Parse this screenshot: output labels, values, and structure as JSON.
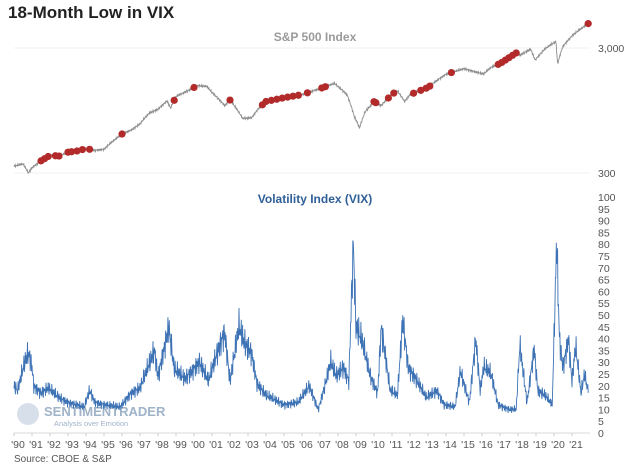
{
  "title": "18-Month Low in VIX",
  "source": "Source: CBOE & S&P",
  "watermark": {
    "name": "SENTIMENTRADER",
    "tagline": "Analysis over Emotion"
  },
  "colors": {
    "sp_line": "#8c8c8c",
    "signal_dot": "#b22a2a",
    "vix_line": "#3d72b4",
    "vix_title": "#2f5f97"
  },
  "chart_data": [
    {
      "type": "line",
      "title": "S&P 500 Index",
      "yscale": "log",
      "ylim": [
        250,
        5000
      ],
      "yticks": [
        {
          "v": 300,
          "label": "300"
        },
        {
          "v": 3000,
          "label": "3,000"
        }
      ],
      "x": [
        1990.0,
        1990.5,
        1990.8,
        1991.0,
        1991.5,
        1992.0,
        1992.5,
        1993.0,
        1993.5,
        1994.0,
        1994.5,
        1995.0,
        1995.5,
        1996.0,
        1996.5,
        1997.0,
        1997.5,
        1998.0,
        1998.5,
        1998.7,
        1999.0,
        1999.5,
        2000.2,
        2000.7,
        2001.0,
        2001.7,
        2002.0,
        2002.7,
        2003.2,
        2003.6,
        2004.0,
        2005.0,
        2006.0,
        2007.0,
        2007.8,
        2008.5,
        2008.9,
        2009.2,
        2009.5,
        2010.0,
        2010.4,
        2011.0,
        2011.3,
        2011.7,
        2012.0,
        2013.0,
        2014.0,
        2015.0,
        2015.7,
        2016.1,
        2016.5,
        2017.0,
        2018.0,
        2018.1,
        2018.7,
        2018.95,
        2019.5,
        2020.1,
        2020.2,
        2020.5,
        2021.0,
        2021.9
      ],
      "values": [
        340,
        355,
        300,
        330,
        375,
        415,
        410,
        440,
        450,
        470,
        455,
        465,
        540,
        615,
        660,
        740,
        900,
        970,
        1130,
        990,
        1230,
        1330,
        1500,
        1480,
        1320,
        1040,
        1150,
        820,
        830,
        990,
        1120,
        1200,
        1270,
        1420,
        1560,
        1270,
        850,
        690,
        920,
        1115,
        1040,
        1280,
        1360,
        1120,
        1270,
        1450,
        1850,
        2050,
        1920,
        1860,
        2100,
        2250,
        2800,
        2620,
        2930,
        2400,
        2950,
        3380,
        2240,
        3100,
        3750,
        4700
      ],
      "signals_x": [
        1991.5,
        1991.7,
        1991.9,
        1992.3,
        1992.5,
        1993.0,
        1993.2,
        1993.5,
        1993.8,
        1994.2,
        1996.0,
        1998.9,
        2000.0,
        2002.0,
        2003.8,
        2004.0,
        2004.3,
        2004.6,
        2004.9,
        2005.2,
        2005.5,
        2005.8,
        2006.3,
        2007.1,
        2007.3,
        2010.0,
        2010.1,
        2010.8,
        2011.1,
        2012.2,
        2012.6,
        2012.9,
        2013.1,
        2014.3,
        2016.9,
        2017.1,
        2017.3,
        2017.5,
        2017.7,
        2017.9,
        2021.9
      ]
    },
    {
      "type": "line",
      "title": "Volatility Index (VIX)",
      "ylim": [
        0,
        100
      ],
      "yticks": [
        0,
        5,
        10,
        15,
        20,
        25,
        30,
        35,
        40,
        45,
        50,
        55,
        60,
        65,
        70,
        75,
        80,
        85,
        90,
        95,
        100
      ],
      "x": [
        1990.0,
        1990.2,
        1990.6,
        1990.8,
        1991.0,
        1991.1,
        1991.5,
        1991.9,
        1992.5,
        1993.0,
        1993.9,
        1994.2,
        1994.5,
        1995.0,
        1995.9,
        1996.5,
        1997.0,
        1997.8,
        1998.0,
        1998.6,
        1998.9,
        1999.5,
        2000.3,
        2000.8,
        2001.2,
        2001.7,
        2002.0,
        2002.5,
        2002.8,
        2003.2,
        2003.5,
        2004.0,
        2004.5,
        2005.0,
        2005.8,
        2006.4,
        2006.9,
        2007.2,
        2007.6,
        2007.9,
        2008.3,
        2008.6,
        2008.85,
        2009.0,
        2009.3,
        2009.8,
        2010.2,
        2010.4,
        2010.9,
        2011.3,
        2011.6,
        2011.9,
        2012.4,
        2012.9,
        2013.5,
        2013.9,
        2014.5,
        2014.8,
        2015.3,
        2015.65,
        2015.9,
        2016.1,
        2016.5,
        2016.9,
        2017.5,
        2017.9,
        2018.1,
        2018.5,
        2018.9,
        2019.1,
        2019.5,
        2019.9,
        2020.15,
        2020.3,
        2020.5,
        2020.8,
        2021.0,
        2021.2,
        2021.5,
        2021.7,
        2021.9
      ],
      "values": [
        20,
        18,
        30,
        34,
        28,
        20,
        17,
        19,
        15,
        13,
        11,
        18,
        13,
        12,
        11,
        17,
        19,
        35,
        24,
        45,
        27,
        23,
        30,
        22,
        32,
        43,
        22,
        45,
        38,
        34,
        21,
        16,
        14,
        12,
        13,
        20,
        10,
        18,
        30,
        24,
        28,
        22,
        80,
        45,
        40,
        24,
        17,
        45,
        18,
        16,
        48,
        28,
        22,
        15,
        18,
        12,
        11,
        26,
        13,
        40,
        18,
        28,
        25,
        12,
        10,
        10,
        37,
        13,
        36,
        18,
        16,
        12,
        82,
        40,
        28,
        40,
        22,
        37,
        17,
        25,
        17
      ]
    }
  ],
  "x_axis": {
    "labels": [
      "'90",
      "'91",
      "'92",
      "'93",
      "'94",
      "'95",
      "'96",
      "'97",
      "'98",
      "'99",
      "'00",
      "'01",
      "'02",
      "'03",
      "'04",
      "'05",
      "'06",
      "'07",
      "'08",
      "'09",
      "'10",
      "'11",
      "'12",
      "'13",
      "'14",
      "'15",
      "'16",
      "'17",
      "'18",
      "'19",
      "'20",
      "'21"
    ],
    "start_year": 1990
  }
}
